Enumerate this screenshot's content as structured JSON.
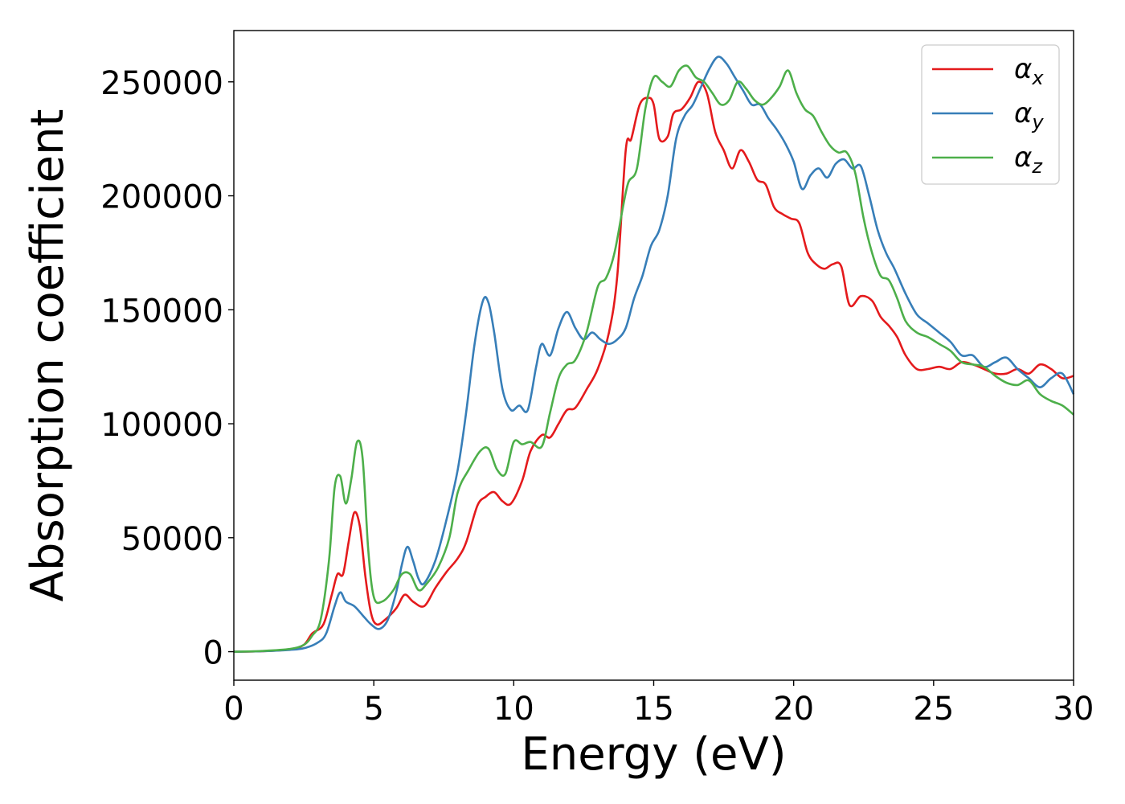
{
  "chart_data": {
    "type": "line",
    "title": "",
    "xlabel": "Energy (eV)",
    "ylabel": "Absorption coefficient",
    "xlim": [
      0,
      30
    ],
    "ylim": [
      -12500,
      272500
    ],
    "xticks": [
      0,
      5,
      10,
      15,
      20,
      25,
      30
    ],
    "xtick_labels": [
      "0",
      "5",
      "10",
      "15",
      "20",
      "25",
      "30"
    ],
    "yticks": [
      0,
      50000,
      100000,
      150000,
      200000,
      250000
    ],
    "ytick_labels": [
      "0",
      "50000",
      "100000",
      "150000",
      "200000",
      "250000"
    ],
    "grid": false,
    "legend_position": "top-right",
    "series": [
      {
        "name": "αx",
        "symbol": "α",
        "subscript": "x",
        "color": "#e41a1c",
        "x": [
          0,
          1,
          2,
          2.5,
          2.8,
          3.2,
          3.5,
          3.7,
          3.9,
          4.1,
          4.3,
          4.5,
          4.7,
          4.9,
          5.1,
          5.4,
          5.8,
          6.1,
          6.4,
          6.8,
          7.2,
          7.6,
          8.0,
          8.3,
          8.7,
          9.0,
          9.3,
          9.6,
          9.9,
          10.3,
          10.6,
          11.0,
          11.3,
          11.6,
          11.9,
          12.2,
          12.6,
          13.0,
          13.4,
          13.7,
          14.0,
          14.2,
          14.5,
          14.8,
          15.0,
          15.2,
          15.5,
          15.7,
          16.0,
          16.3,
          16.6,
          16.9,
          17.2,
          17.5,
          17.8,
          18.1,
          18.4,
          18.7,
          19.0,
          19.3,
          19.6,
          19.9,
          20.2,
          20.5,
          20.8,
          21.1,
          21.4,
          21.7,
          22.0,
          22.4,
          22.8,
          23.1,
          23.4,
          23.7,
          24.0,
          24.4,
          24.8,
          25.2,
          25.6,
          26.0,
          26.4,
          26.8,
          27.2,
          27.6,
          28.0,
          28.4,
          28.8,
          29.2,
          29.6,
          30
        ],
        "y": [
          0,
          200,
          1000,
          3000,
          8000,
          12000,
          25000,
          34000,
          34000,
          48000,
          61000,
          55000,
          33000,
          17000,
          12000,
          14000,
          19000,
          25000,
          22000,
          20000,
          28000,
          35000,
          41000,
          48000,
          64000,
          68000,
          70000,
          66000,
          65000,
          75000,
          88000,
          95000,
          94000,
          100000,
          106000,
          107000,
          115000,
          124000,
          140000,
          165000,
          220000,
          225000,
          240000,
          243000,
          240000,
          225000,
          226000,
          236000,
          238000,
          243000,
          250000,
          245000,
          228000,
          220000,
          212000,
          220000,
          215000,
          207000,
          205000,
          195000,
          192000,
          190000,
          188000,
          175000,
          170000,
          168000,
          170000,
          169000,
          152000,
          156000,
          154000,
          147000,
          143000,
          138000,
          130000,
          124000,
          124000,
          125000,
          124000,
          127000,
          126000,
          124000,
          122000,
          122000,
          124000,
          122000,
          126000,
          124000,
          120000,
          121000
        ]
      },
      {
        "name": "αy",
        "symbol": "α",
        "subscript": "y",
        "color": "#377eb8",
        "x": [
          0,
          1,
          2,
          2.5,
          3.0,
          3.3,
          3.6,
          3.8,
          4.0,
          4.3,
          4.6,
          4.9,
          5.2,
          5.5,
          5.8,
          6.0,
          6.2,
          6.4,
          6.6,
          6.8,
          7.2,
          7.6,
          8.0,
          8.3,
          8.6,
          8.9,
          9.1,
          9.3,
          9.6,
          9.9,
          10.2,
          10.5,
          10.8,
          11.0,
          11.3,
          11.6,
          11.9,
          12.2,
          12.5,
          12.8,
          13.1,
          13.4,
          13.7,
          14.0,
          14.3,
          14.6,
          14.9,
          15.2,
          15.5,
          15.8,
          16.1,
          16.4,
          16.7,
          17.0,
          17.3,
          17.6,
          17.9,
          18.2,
          18.5,
          18.8,
          19.1,
          19.4,
          19.7,
          20.0,
          20.3,
          20.6,
          20.9,
          21.2,
          21.5,
          21.8,
          22.1,
          22.4,
          22.7,
          23.0,
          23.3,
          23.6,
          24.0,
          24.4,
          24.8,
          25.2,
          25.6,
          26.0,
          26.4,
          26.8,
          27.2,
          27.6,
          28.0,
          28.4,
          28.8,
          29.2,
          29.6,
          30
        ],
        "y": [
          0,
          200,
          800,
          1500,
          4000,
          8000,
          20000,
          26000,
          22000,
          20000,
          16000,
          12000,
          10000,
          14000,
          26000,
          38000,
          46000,
          40000,
          32000,
          30000,
          40000,
          58000,
          80000,
          105000,
          135000,
          154000,
          153000,
          140000,
          115000,
          106000,
          108000,
          106000,
          125000,
          135000,
          130000,
          142000,
          149000,
          142000,
          137000,
          140000,
          137000,
          135000,
          137000,
          142000,
          155000,
          165000,
          178000,
          185000,
          200000,
          225000,
          235000,
          240000,
          248000,
          256000,
          261000,
          258000,
          252000,
          246000,
          240000,
          240000,
          234000,
          229000,
          223000,
          215000,
          203000,
          209000,
          212000,
          208000,
          214000,
          216000,
          212000,
          213000,
          200000,
          185000,
          175000,
          168000,
          157000,
          148000,
          144000,
          140000,
          136000,
          130000,
          130000,
          125000,
          127000,
          129000,
          124000,
          120000,
          116000,
          120000,
          122000,
          113000
        ]
      },
      {
        "name": "αz",
        "symbol": "α",
        "subscript": "z",
        "color": "#4daf4a",
        "x": [
          0,
          1,
          2,
          2.5,
          2.8,
          3.1,
          3.4,
          3.6,
          3.8,
          4.0,
          4.2,
          4.4,
          4.6,
          4.8,
          5.0,
          5.3,
          5.7,
          6.0,
          6.3,
          6.6,
          6.9,
          7.3,
          7.7,
          8.0,
          8.4,
          8.8,
          9.1,
          9.4,
          9.7,
          10.0,
          10.3,
          10.6,
          11.0,
          11.3,
          11.6,
          11.9,
          12.2,
          12.6,
          13.0,
          13.3,
          13.6,
          13.9,
          14.1,
          14.4,
          14.7,
          15.0,
          15.3,
          15.6,
          15.9,
          16.2,
          16.5,
          16.8,
          17.1,
          17.4,
          17.7,
          18.0,
          18.3,
          18.6,
          18.9,
          19.2,
          19.5,
          19.8,
          20.1,
          20.4,
          20.7,
          21.0,
          21.3,
          21.6,
          21.9,
          22.2,
          22.5,
          22.8,
          23.1,
          23.4,
          23.7,
          24.0,
          24.4,
          24.8,
          25.2,
          25.6,
          26.0,
          26.4,
          26.8,
          27.2,
          27.6,
          28.0,
          28.4,
          28.8,
          29.2,
          29.6,
          30
        ],
        "y": [
          0,
          300,
          1200,
          3000,
          7000,
          14000,
          40000,
          72000,
          77000,
          65000,
          76000,
          92000,
          85000,
          45000,
          24000,
          22000,
          27000,
          34000,
          34000,
          27000,
          30000,
          37000,
          50000,
          70000,
          80000,
          88000,
          89000,
          80000,
          78000,
          92000,
          91000,
          92000,
          90000,
          105000,
          120000,
          126000,
          128000,
          140000,
          160000,
          164000,
          175000,
          195000,
          206000,
          212000,
          238000,
          252000,
          250000,
          248000,
          255000,
          257000,
          252000,
          250000,
          245000,
          240000,
          242000,
          250000,
          247000,
          242000,
          240000,
          243000,
          248000,
          255000,
          245000,
          238000,
          235000,
          228000,
          222000,
          219000,
          219000,
          210000,
          190000,
          175000,
          165000,
          163000,
          155000,
          145000,
          140000,
          138000,
          135000,
          132000,
          127000,
          126000,
          125000,
          121000,
          118000,
          117000,
          119000,
          113000,
          110000,
          108000,
          104000
        ]
      }
    ]
  }
}
